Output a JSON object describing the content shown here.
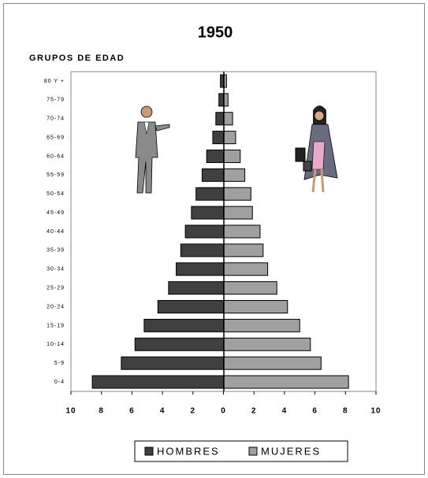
{
  "chart_data": {
    "type": "pyramid",
    "title": "1950",
    "y_label": "GRUPOS DE EDAD",
    "categories": [
      "0-4",
      "5-9",
      "10-14",
      "15-19",
      "20-24",
      "25-29",
      "30-34",
      "35-39",
      "40-44",
      "45-49",
      "50-54",
      "55-59",
      "60-64",
      "65-69",
      "70-74",
      "75-79",
      "80 Y +"
    ],
    "series": [
      {
        "name": "HOMBRES",
        "color": "#404040",
        "values": [
          -8.6,
          -6.7,
          -5.8,
          -5.2,
          -4.3,
          -3.6,
          -3.1,
          -2.8,
          -2.5,
          -2.1,
          -1.8,
          -1.4,
          -1.1,
          -0.7,
          -0.5,
          -0.3,
          -0.2
        ]
      },
      {
        "name": "MUJERES",
        "color": "#a0a0a0",
        "values": [
          8.2,
          6.4,
          5.7,
          5.0,
          4.2,
          3.5,
          2.9,
          2.6,
          2.4,
          1.9,
          1.8,
          1.4,
          1.1,
          0.8,
          0.6,
          0.3,
          0.2
        ]
      }
    ],
    "xlim": [
      -10,
      10
    ],
    "xticks": [
      {
        "value": -10,
        "label": "10"
      },
      {
        "value": -8,
        "label": "8"
      },
      {
        "value": -6,
        "label": "6"
      },
      {
        "value": -4,
        "label": "4"
      },
      {
        "value": -2,
        "label": "2"
      },
      0,
      2,
      4,
      6,
      8,
      10
    ]
  }
}
